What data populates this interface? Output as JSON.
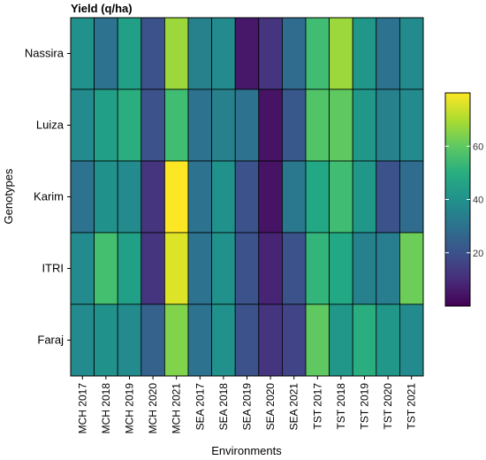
{
  "chart_data": {
    "type": "heatmap",
    "title": "Yield (q/ha)",
    "xlabel": "Environments",
    "ylabel": "Genotypes",
    "x_categories": [
      "MCH 2017",
      "MCH 2018",
      "MCH 2019",
      "MCH 2020",
      "MCH 2021",
      "SEA 2017",
      "SEA 2018",
      "SEA 2019",
      "SEA 2020",
      "SEA 2021",
      "TST 2017",
      "TST 2018",
      "TST 2019",
      "TST 2020",
      "TST 2021"
    ],
    "y_categories": [
      "Nassira",
      "Luiza",
      "Karim",
      "ITRI",
      "Faraj"
    ],
    "values": [
      [
        40,
        30,
        45,
        20,
        68,
        35,
        38,
        5,
        12,
        28,
        55,
        68,
        42,
        30,
        38
      ],
      [
        38,
        45,
        50,
        20,
        55,
        30,
        35,
        30,
        4,
        22,
        58,
        60,
        42,
        35,
        38
      ],
      [
        30,
        40,
        38,
        12,
        80,
        30,
        40,
        20,
        4,
        32,
        48,
        55,
        42,
        20,
        28
      ],
      [
        38,
        56,
        45,
        12,
        76,
        30,
        40,
        20,
        8,
        20,
        52,
        48,
        35,
        34,
        62
      ],
      [
        38,
        40,
        38,
        25,
        65,
        30,
        40,
        20,
        12,
        16,
        60,
        42,
        50,
        42,
        38
      ]
    ],
    "colorbar": {
      "min": 0,
      "max": 80,
      "ticks": [
        20,
        40,
        60
      ],
      "palette": "viridis"
    },
    "grid": false,
    "legend_position": "right"
  }
}
